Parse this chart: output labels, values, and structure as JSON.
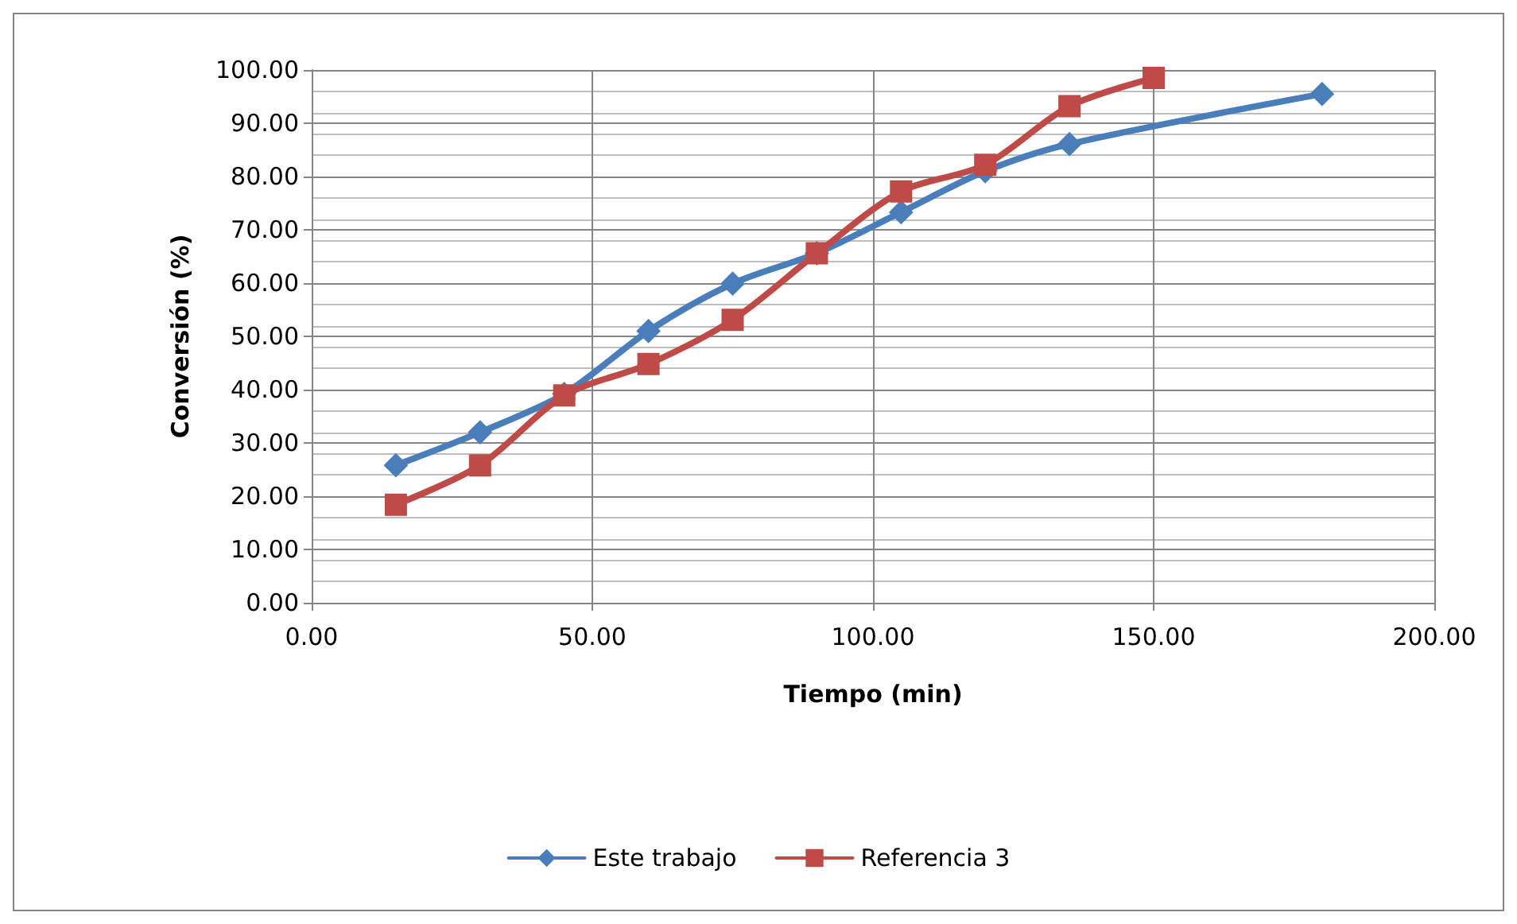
{
  "chart_data": {
    "type": "line",
    "xlabel": "Tiempo (min)",
    "ylabel": "Conversión (%)",
    "xlim": [
      0,
      200
    ],
    "xticks": [
      {
        "value": 0,
        "label": "0.00"
      },
      {
        "value": 50,
        "label": "50.00"
      },
      {
        "value": 100,
        "label": "100.00"
      },
      {
        "value": 150,
        "label": "150.00"
      },
      {
        "value": 200,
        "label": "200.00"
      }
    ],
    "ylim": [
      0,
      100
    ],
    "yticks": [
      {
        "value": 0,
        "label": "0.00"
      },
      {
        "value": 10,
        "label": "10.00"
      },
      {
        "value": 20,
        "label": "20.00"
      },
      {
        "value": 30,
        "label": "30.00"
      },
      {
        "value": 40,
        "label": "40.00"
      },
      {
        "value": 50,
        "label": "50.00"
      },
      {
        "value": 60,
        "label": "60.00"
      },
      {
        "value": 70,
        "label": "70.00"
      },
      {
        "value": 80,
        "label": "80.00"
      },
      {
        "value": 90,
        "label": "90.00"
      },
      {
        "value": 100,
        "label": "100.00"
      }
    ],
    "grid": true,
    "legend": "bottom",
    "series": [
      {
        "name": "Este trabajo",
        "color": "#4a7ebb",
        "marker": "diamond",
        "x": [
          15,
          30,
          45,
          60,
          75,
          90,
          105,
          120,
          135,
          180
        ],
        "values": [
          25.8,
          32.0,
          39.2,
          51.0,
          59.9,
          65.6,
          73.3,
          81.0,
          86.1,
          95.5
        ]
      },
      {
        "name": "Referencia 3",
        "color": "#be4b48",
        "marker": "square",
        "x": [
          15,
          30,
          45,
          60,
          75,
          90,
          105,
          120,
          135,
          150
        ],
        "values": [
          18.4,
          25.8,
          38.9,
          44.8,
          53.1,
          65.6,
          77.2,
          82.2,
          93.2,
          98.5
        ]
      }
    ]
  }
}
